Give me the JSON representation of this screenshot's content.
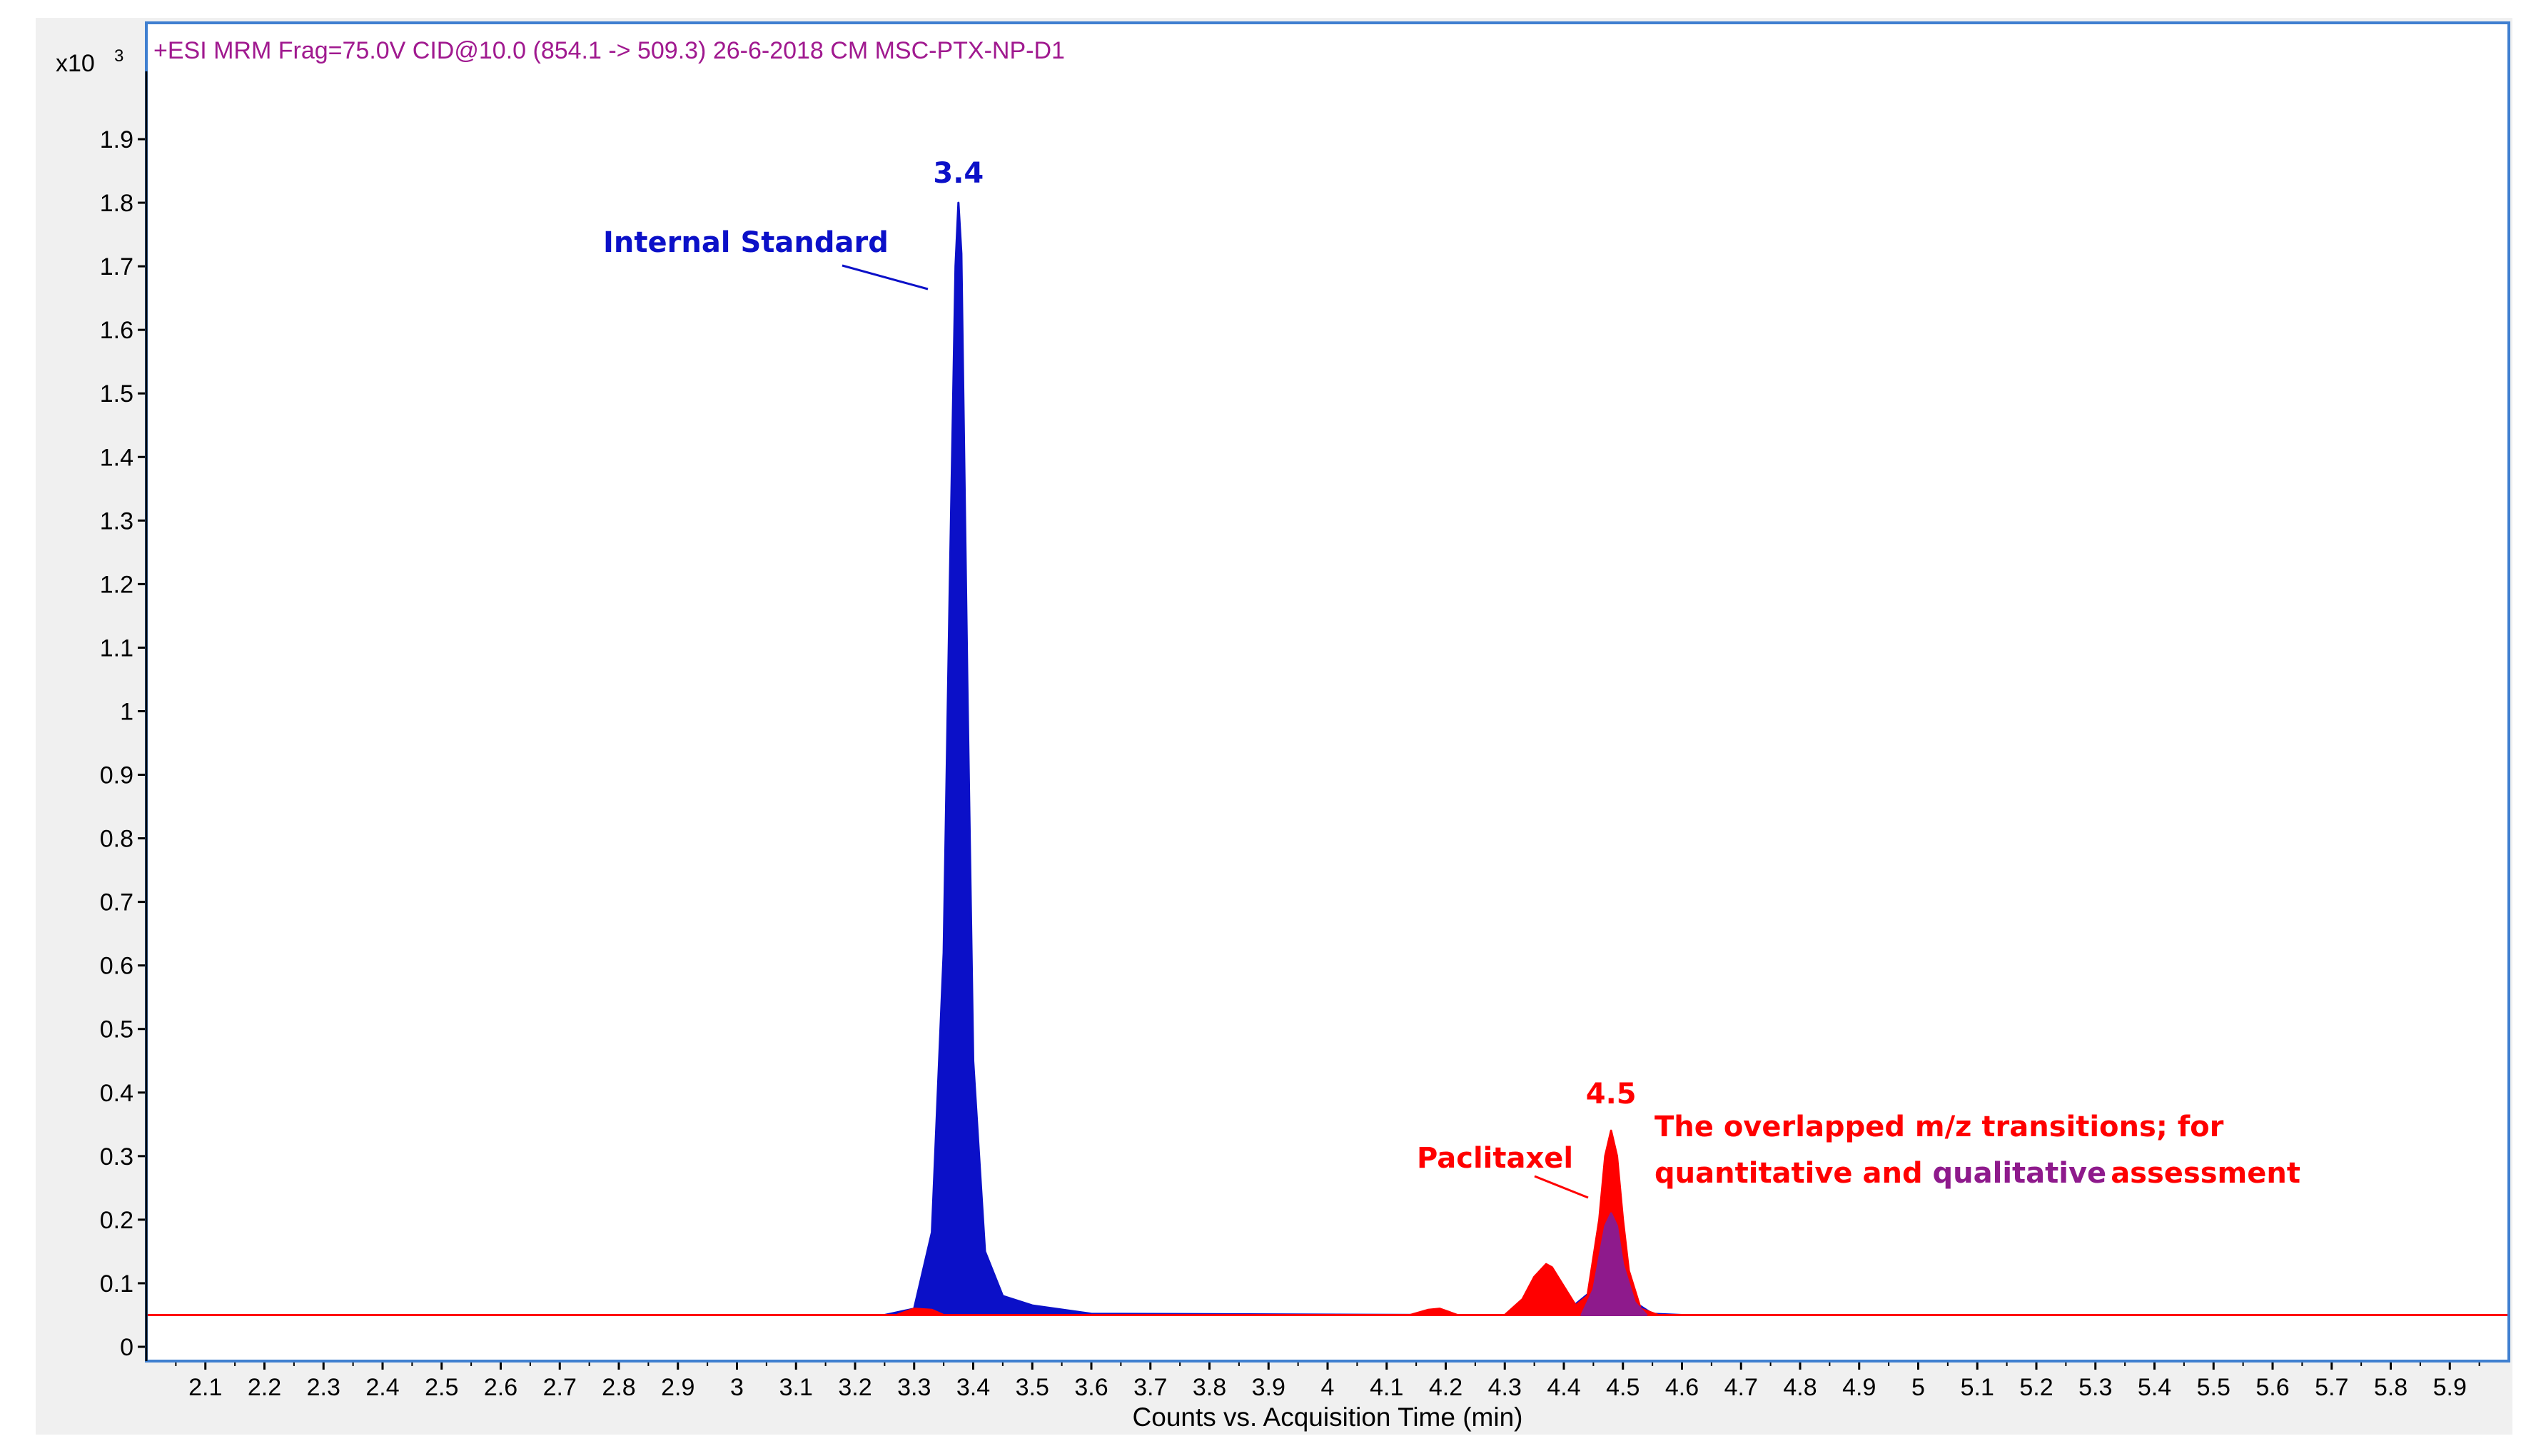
{
  "chart_data": {
    "type": "line",
    "title": "+ESI MRM Frag=75.0V CID@10.0 (854.1 -> 509.3) 26-6-2018 CM MSC-PTX-NP-D1",
    "xlabel": "Counts vs. Acquisition Time (min)",
    "ylabel_multiplier_base": "x10",
    "ylabel_multiplier_exp": "3",
    "xlim": [
      2.0,
      6.0
    ],
    "ylim": [
      0,
      2.0
    ],
    "xticks": [
      "2.1",
      "2.2",
      "2.3",
      "2.4",
      "2.5",
      "2.6",
      "2.7",
      "2.8",
      "2.9",
      "3",
      "3.1",
      "3.2",
      "3.3",
      "3.4",
      "3.5",
      "3.6",
      "3.7",
      "3.8",
      "3.9",
      "4",
      "4.1",
      "4.2",
      "4.3",
      "4.4",
      "4.5",
      "4.6",
      "4.7",
      "4.8",
      "4.9",
      "5",
      "5.1",
      "5.2",
      "5.3",
      "5.4",
      "5.5",
      "5.6",
      "5.7",
      "5.8",
      "5.9"
    ],
    "yticks": [
      "0",
      "0.1",
      "0.2",
      "0.3",
      "0.4",
      "0.5",
      "0.6",
      "0.7",
      "0.8",
      "0.9",
      "1",
      "1.1",
      "1.2",
      "1.3",
      "1.4",
      "1.5",
      "1.6",
      "1.7",
      "1.8",
      "1.9"
    ],
    "colors": {
      "frame": "#3f7fd0",
      "title": "#a0198f",
      "internal_standard": "#0b10c8",
      "paclitaxel": "#ff0000",
      "overlap": "#8e1a8c",
      "outer_bg": "#f0f0f0"
    },
    "series": [
      {
        "color_key": "internal_standard",
        "x": [
          2.0,
          3.25,
          3.3,
          3.33,
          3.35,
          3.36,
          3.37,
          3.375,
          3.38,
          3.39,
          3.4,
          3.42,
          3.45,
          3.5,
          3.6,
          4.2,
          4.25,
          4.3,
          4.35,
          4.4,
          4.45,
          4.46,
          4.47,
          4.48,
          4.49,
          4.5,
          4.52,
          4.55,
          4.6,
          6.0
        ],
        "y": [
          0.05,
          0.05,
          0.06,
          0.18,
          0.62,
          1.18,
          1.7,
          1.8,
          1.72,
          1.05,
          0.45,
          0.15,
          0.08,
          0.065,
          0.052,
          0.05,
          0.05,
          0.05,
          0.05,
          0.052,
          0.09,
          0.14,
          0.19,
          0.21,
          0.19,
          0.13,
          0.07,
          0.052,
          0.05,
          0.05
        ]
      },
      {
        "color_key": "paclitaxel",
        "x": [
          2.0,
          3.27,
          3.3,
          3.33,
          3.35,
          4.14,
          4.17,
          4.19,
          4.22,
          4.3,
          4.33,
          4.35,
          4.37,
          4.38,
          4.4,
          4.42,
          4.44,
          4.46,
          4.47,
          4.48,
          4.49,
          4.5,
          4.51,
          4.53,
          4.56,
          4.6,
          6.0
        ],
        "y": [
          0.05,
          0.05,
          0.06,
          0.058,
          0.05,
          0.05,
          0.058,
          0.06,
          0.05,
          0.05,
          0.075,
          0.11,
          0.13,
          0.125,
          0.095,
          0.065,
          0.08,
          0.2,
          0.3,
          0.34,
          0.3,
          0.2,
          0.12,
          0.06,
          0.05,
          0.05,
          0.05
        ]
      },
      {
        "color_key": "overlap",
        "x": [
          4.43,
          4.45,
          4.46,
          4.47,
          4.48,
          4.49,
          4.5,
          4.52,
          4.54
        ],
        "y": [
          0.05,
          0.09,
          0.14,
          0.19,
          0.21,
          0.19,
          0.13,
          0.07,
          0.05
        ]
      }
    ],
    "annotations": {
      "is_peak": {
        "text": "3.4",
        "x": 3.375,
        "y": 1.8
      },
      "is_name": {
        "text": "Internal Standard",
        "x": 3.34,
        "y": 1.68
      },
      "ptx_peak": {
        "text": "4.5",
        "x": 4.48,
        "y": 0.34
      },
      "ptx_name": {
        "text": "Paclitaxel",
        "x": 4.43,
        "y": 0.235
      },
      "overlap_note": {
        "line1": "The overlapped m/z transitions; for",
        "line2_a": "quantitative and ",
        "line2_b": "qualitative",
        "line2_c": "assessment"
      }
    }
  }
}
